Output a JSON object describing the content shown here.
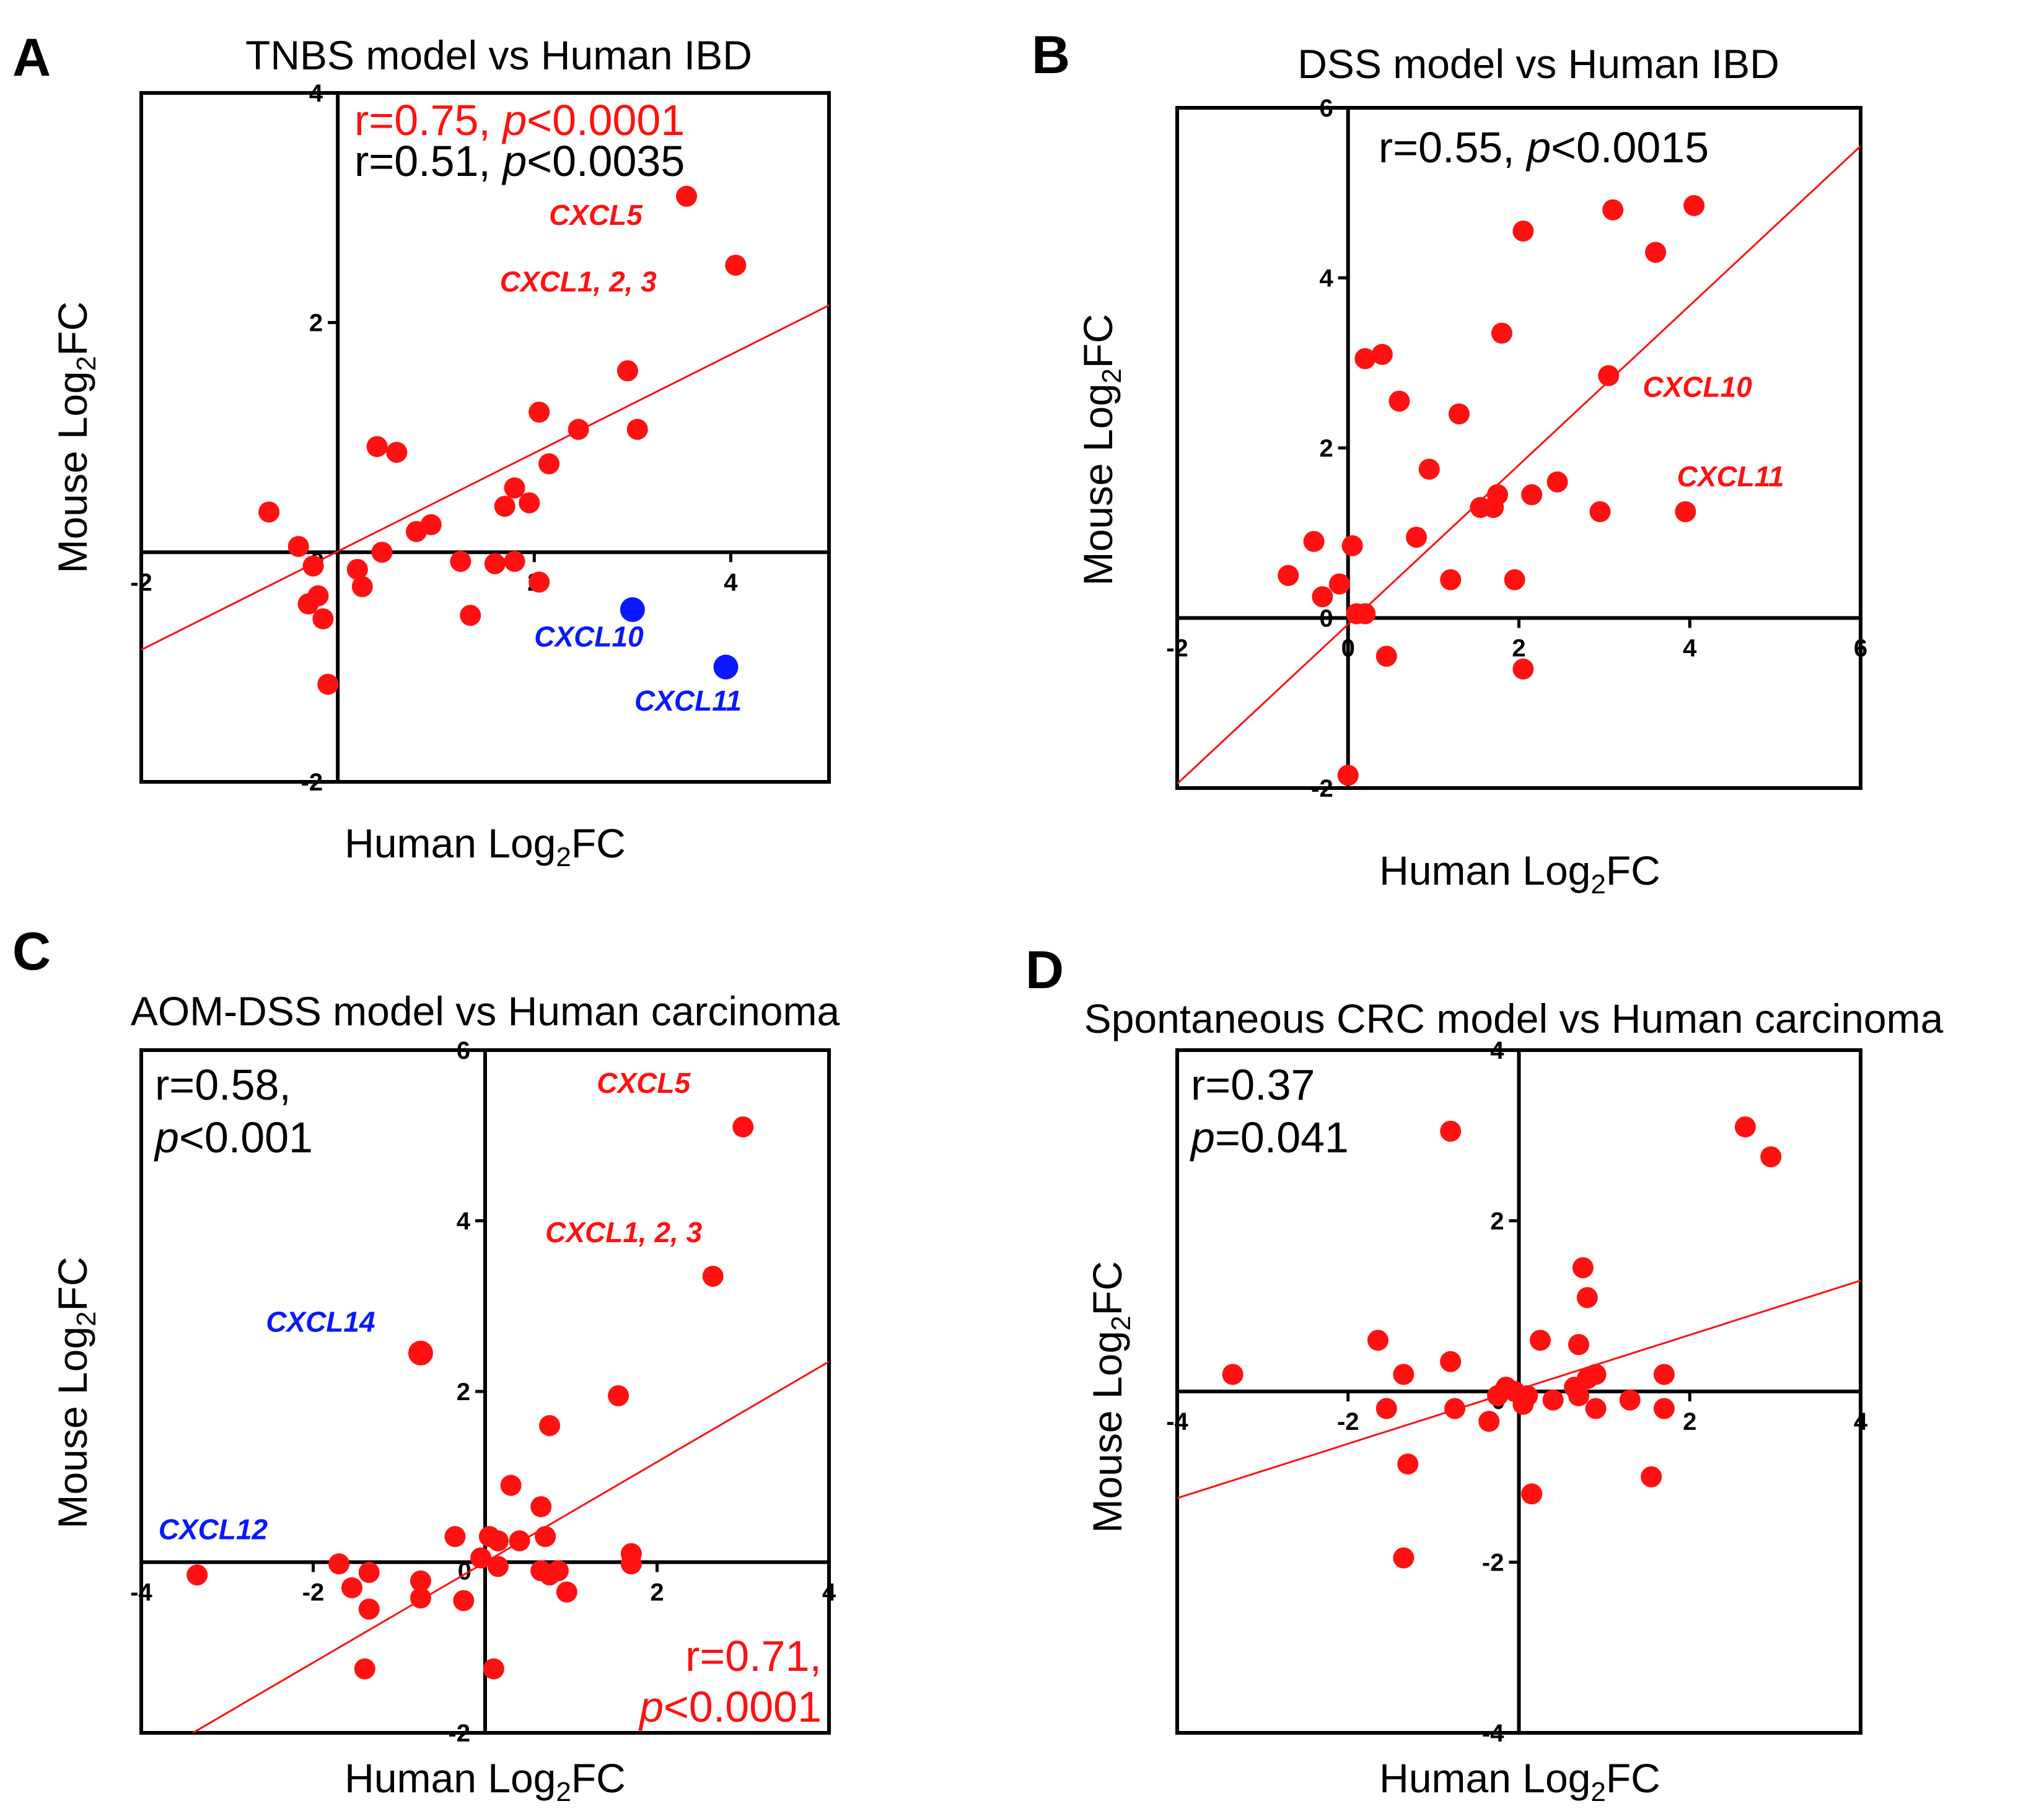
{
  "colors": {
    "red": "#ff1111",
    "blue": "#0a18ff",
    "black": "#000000"
  },
  "chart_data": [
    {
      "id": "A",
      "type": "scatter",
      "panel_letter": "A",
      "title": "TNBS model  vs Human IBD",
      "xlabel_prefix": "Human Log",
      "xlabel_sub": "2",
      "xlabel_suffix": "FC",
      "ylabel_prefix": "Mouse Log",
      "ylabel_sub": "2",
      "ylabel_suffix": "FC",
      "xlim": [
        -2,
        5
      ],
      "ylim": [
        -2,
        4
      ],
      "xticks": [
        -2,
        2,
        4
      ],
      "yticks": [
        -2,
        2,
        4
      ],
      "xtick_labels": [
        "-2",
        "2",
        "4"
      ],
      "ytick_labels": [
        "-2",
        "2",
        "4"
      ],
      "origin_label": "0",
      "stats": [
        {
          "r_text": "r=0.75, ",
          "p_italic": "p",
          "p_text": "<0.0001",
          "color": "red",
          "anchor": "top-left"
        },
        {
          "r_text": "r=0.51, ",
          "p_italic": "p",
          "p_text": "<0.0035",
          "color": "black",
          "anchor": "top-left"
        }
      ],
      "fit_line": {
        "x": [
          -2,
          5
        ],
        "y": [
          -0.85,
          2.15
        ]
      },
      "points": [
        [
          -0.7,
          0.35
        ],
        [
          -0.4,
          0.05
        ],
        [
          -0.25,
          -0.12
        ],
        [
          -0.3,
          -0.45
        ],
        [
          -0.2,
          -0.38
        ],
        [
          -0.15,
          -0.58
        ],
        [
          -0.1,
          -1.15
        ],
        [
          0.2,
          -0.15
        ],
        [
          0.25,
          -0.3
        ],
        [
          0.45,
          0.0
        ],
        [
          0.4,
          0.92
        ],
        [
          0.6,
          0.87
        ],
        [
          0.8,
          0.18
        ],
        [
          0.95,
          0.24
        ],
        [
          1.25,
          -0.08
        ],
        [
          1.35,
          -0.55
        ],
        [
          1.6,
          -0.1
        ],
        [
          1.7,
          0.4
        ],
        [
          1.8,
          0.56
        ],
        [
          1.8,
          -0.08
        ],
        [
          1.95,
          0.43
        ],
        [
          2.05,
          -0.26
        ],
        [
          2.05,
          1.22
        ],
        [
          2.15,
          0.77
        ],
        [
          2.45,
          1.07
        ],
        [
          2.95,
          1.58
        ],
        [
          3.05,
          1.07
        ],
        [
          3.55,
          3.1
        ],
        [
          4.05,
          2.5
        ]
      ],
      "highlight_points": [
        {
          "x": 3.0,
          "y": -0.5,
          "color": "blue"
        },
        {
          "x": 3.95,
          "y": -1.0,
          "color": "blue"
        }
      ],
      "annotations": [
        {
          "text": "CXCL5",
          "x": 2.15,
          "y": 2.85,
          "color": "red"
        },
        {
          "text": "CXCL1, 2, 3",
          "x": 1.65,
          "y": 2.27,
          "color": "red"
        },
        {
          "text": "CXCL10",
          "x": 2.0,
          "y": -0.82,
          "color": "blue"
        },
        {
          "text": "CXCL11",
          "x": 3.02,
          "y": -1.38,
          "color": "blue"
        }
      ]
    },
    {
      "id": "B",
      "type": "scatter",
      "panel_letter": "B",
      "title": "DSS model vs Human IBD",
      "xlabel_prefix": "Human Log",
      "xlabel_sub": "2",
      "xlabel_suffix": "FC",
      "ylabel_prefix": "Mouse Log",
      "ylabel_sub": "2",
      "ylabel_suffix": "FC",
      "xlim": [
        -2,
        6
      ],
      "ylim": [
        -2,
        6
      ],
      "xticks": [
        -2,
        0,
        2,
        4,
        6
      ],
      "yticks": [
        -2,
        0,
        2,
        4,
        6
      ],
      "xtick_labels": [
        "-2",
        "0",
        "2",
        "4",
        "6"
      ],
      "ytick_labels": [
        "-2",
        "0",
        "2",
        "4",
        "6"
      ],
      "origin_label": "",
      "stats": [
        {
          "r_text": "r=0.55, ",
          "p_italic": "p",
          "p_text": "<0.0015",
          "color": "black",
          "anchor": "top-center"
        }
      ],
      "fit_line": {
        "x": [
          -2,
          6
        ],
        "y": [
          -1.95,
          5.55
        ]
      },
      "points": [
        [
          -0.7,
          0.5
        ],
        [
          -0.4,
          0.9
        ],
        [
          -0.3,
          0.25
        ],
        [
          -0.1,
          0.4
        ],
        [
          0.05,
          0.85
        ],
        [
          0.1,
          0.05
        ],
        [
          0.2,
          0.05
        ],
        [
          0.2,
          3.05
        ],
        [
          0.4,
          3.1
        ],
        [
          0.45,
          -0.45
        ],
        [
          0.6,
          2.55
        ],
        [
          0.8,
          0.95
        ],
        [
          0.95,
          1.75
        ],
        [
          1.2,
          0.45
        ],
        [
          1.3,
          2.4
        ],
        [
          1.55,
          1.3
        ],
        [
          1.7,
          1.3
        ],
        [
          1.75,
          1.45
        ],
        [
          1.8,
          3.35
        ],
        [
          1.95,
          0.45
        ],
        [
          2.05,
          4.55
        ],
        [
          2.05,
          -0.6
        ],
        [
          2.15,
          1.45
        ],
        [
          2.45,
          1.6
        ],
        [
          2.95,
          1.25
        ],
        [
          3.05,
          2.85
        ],
        [
          3.1,
          4.8
        ],
        [
          3.6,
          4.3
        ],
        [
          3.95,
          1.25
        ],
        [
          4.05,
          4.85
        ],
        [
          0.0,
          -1.85
        ]
      ],
      "highlight_points": [],
      "annotations": [
        {
          "text": "CXCL10",
          "x": 3.45,
          "y": 2.6,
          "color": "red"
        },
        {
          "text": "CXCL11",
          "x": 3.85,
          "y": 1.55,
          "color": "red"
        }
      ]
    },
    {
      "id": "C",
      "type": "scatter",
      "panel_letter": "C",
      "title": "AOM-DSS model vs Human carcinoma",
      "xlabel_prefix": "Human Log",
      "xlabel_sub": "2",
      "xlabel_suffix": "FC",
      "ylabel_prefix": "Mouse Log",
      "ylabel_sub": "2",
      "ylabel_suffix": "FC",
      "xlim": [
        -4,
        4
      ],
      "ylim": [
        -2,
        6
      ],
      "xticks": [
        -4,
        -2,
        2,
        4
      ],
      "yticks": [
        -2,
        2,
        4,
        6
      ],
      "xtick_labels": [
        "-4",
        "-2",
        "2",
        "4"
      ],
      "ytick_labels": [
        "-2",
        "2",
        "4",
        "6"
      ],
      "origin_label": "0",
      "stats": [
        {
          "r_text": "r=0.58,",
          "p_italic": "p",
          "p_text": "<0.001",
          "color": "black",
          "anchor": "top-left-stacked"
        },
        {
          "r_text": "r=0.71,",
          "p_italic": "p",
          "p_text": "<0.0001",
          "color": "red",
          "anchor": "bottom-right-stacked"
        }
      ],
      "fit_line": {
        "x": [
          -3.4,
          4
        ],
        "y": [
          -2,
          2.35
        ]
      },
      "points": [
        [
          -3.35,
          -0.15
        ],
        [
          -1.7,
          -0.02
        ],
        [
          -1.55,
          -0.3
        ],
        [
          -1.35,
          -0.12
        ],
        [
          -1.35,
          -0.55
        ],
        [
          -1.4,
          -1.25
        ],
        [
          -0.75,
          -0.22
        ],
        [
          -0.75,
          -0.42
        ],
        [
          -0.35,
          0.3
        ],
        [
          -0.25,
          -0.45
        ],
        [
          -0.05,
          0.05
        ],
        [
          0.05,
          0.3
        ],
        [
          0.15,
          0.25
        ],
        [
          0.15,
          -0.05
        ],
        [
          0.1,
          -1.25
        ],
        [
          0.3,
          0.9
        ],
        [
          0.4,
          0.25
        ],
        [
          0.65,
          0.65
        ],
        [
          0.65,
          -0.1
        ],
        [
          0.7,
          0.3
        ],
        [
          0.75,
          -0.15
        ],
        [
          0.85,
          -0.1
        ],
        [
          0.95,
          -0.35
        ],
        [
          1.55,
          1.95
        ],
        [
          1.7,
          0.1
        ],
        [
          1.7,
          -0.02
        ],
        [
          0.75,
          1.6
        ],
        [
          2.65,
          3.35
        ],
        [
          3.0,
          5.1
        ]
      ],
      "highlight_points": [
        {
          "x": -0.75,
          "y": 2.45,
          "color": "red"
        }
      ],
      "annotations": [
        {
          "text": "CXCL5",
          "x": 1.3,
          "y": 5.5,
          "color": "red"
        },
        {
          "text": "CXCL1, 2, 3",
          "x": 0.7,
          "y": 3.75,
          "color": "red"
        },
        {
          "text": "CXCL14",
          "x": -2.55,
          "y": 2.7,
          "color": "blue"
        },
        {
          "text": "CXCL12",
          "x": -3.8,
          "y": 0.27,
          "color": "blue"
        }
      ]
    },
    {
      "id": "D",
      "type": "scatter",
      "panel_letter": "D",
      "title": "Spontaneous CRC model vs Human carcinoma",
      "xlabel_prefix": "Human Log",
      "xlabel_sub": "2",
      "xlabel_suffix": "FC",
      "ylabel_prefix": "Mouse Log",
      "ylabel_sub": "2",
      "ylabel_suffix": "FC",
      "xlim": [
        -4,
        4
      ],
      "ylim": [
        -4,
        4
      ],
      "xticks": [
        -4,
        -2,
        2,
        4
      ],
      "yticks": [
        -4,
        -2,
        2,
        4
      ],
      "xtick_labels": [
        "-4",
        "-2",
        "2",
        "4"
      ],
      "ytick_labels": [
        "-4",
        "-2",
        "2",
        "4"
      ],
      "origin_label": "0",
      "stats": [
        {
          "r_text": "r=0.37",
          "p_italic": "p",
          "p_text": "=0.041",
          "color": "black",
          "anchor": "top-left-stacked"
        }
      ],
      "fit_line": {
        "x": [
          -4,
          4
        ],
        "y": [
          -1.25,
          1.3
        ]
      },
      "points": [
        [
          -3.35,
          0.2
        ],
        [
          -1.65,
          0.6
        ],
        [
          -1.55,
          -0.2
        ],
        [
          -1.35,
          0.2
        ],
        [
          -1.3,
          -0.85
        ],
        [
          -1.35,
          -1.95
        ],
        [
          -0.8,
          0.35
        ],
        [
          -0.75,
          -0.2
        ],
        [
          -0.35,
          -0.35
        ],
        [
          -0.25,
          -0.05
        ],
        [
          -0.15,
          0.05
        ],
        [
          -0.05,
          0.0
        ],
        [
          0.05,
          -0.15
        ],
        [
          0.1,
          -0.05
        ],
        [
          0.15,
          -1.2
        ],
        [
          0.25,
          0.6
        ],
        [
          0.4,
          -0.1
        ],
        [
          0.65,
          0.05
        ],
        [
          0.7,
          -0.05
        ],
        [
          0.7,
          0.55
        ],
        [
          0.8,
          0.15
        ],
        [
          0.75,
          1.45
        ],
        [
          0.8,
          1.1
        ],
        [
          0.9,
          0.2
        ],
        [
          0.9,
          -0.2
        ],
        [
          1.3,
          -0.1
        ],
        [
          1.55,
          -1.0
        ],
        [
          1.7,
          0.2
        ],
        [
          1.7,
          -0.2
        ],
        [
          -0.8,
          3.05
        ],
        [
          2.65,
          3.1
        ],
        [
          2.95,
          2.75
        ]
      ],
      "highlight_points": [],
      "annotations": []
    }
  ]
}
